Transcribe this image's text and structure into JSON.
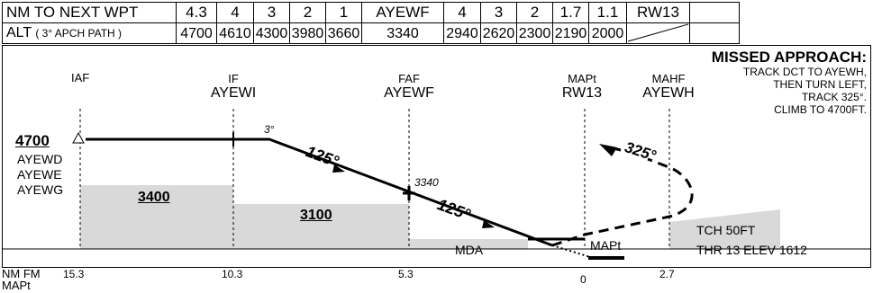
{
  "table": {
    "nm_label": "NM TO NEXT WPT",
    "nm_values": [
      "4.3",
      "4",
      "3",
      "2",
      "1",
      "AYEWF",
      "4",
      "3",
      "2",
      "1.7",
      "1.1",
      "RW13"
    ],
    "alt_label_main": "ALT",
    "alt_label_sub": "( 3° APCH PATH )",
    "alt_values": [
      "4700",
      "4610",
      "4300",
      "3980",
      "3660",
      "3340",
      "2940",
      "2620",
      "2300",
      "2190",
      "2000"
    ]
  },
  "missed": {
    "title": "MISSED APPROACH:",
    "lines": [
      "TRACK DCT TO AYEWH,",
      "THEN TURN LEFT,",
      "TRACK 325°.",
      "CLIMB TO 4700FT."
    ]
  },
  "fixes": {
    "iaf": "IAF",
    "if_role": "IF",
    "if_name": "AYEWI",
    "faf_role": "FAF",
    "faf_name": "AYEWF",
    "mapt_role": "MAPt",
    "mapt_name": "RW13",
    "mahf_role": "MAHF",
    "mahf_name": "AYEWH"
  },
  "profile": {
    "iaf_alt": "4700",
    "holds": [
      "AYEWD",
      "AYEWE",
      "AYEWG"
    ],
    "glide_angle": "3°",
    "track_1": "125°",
    "track_2": "125°",
    "faf_alt": "3340",
    "track_missed": "325°",
    "msa_1": "3400",
    "msa_2": "3100",
    "mda": "MDA",
    "mapt_tag": "MAPt",
    "tch": "TCH 50FT",
    "thr": "THR 13 ELEV 1612"
  },
  "distances": {
    "label_line1": "NM FM",
    "label_line2": "MAPt",
    "ticks": [
      "15.3",
      "10.3",
      "5.3",
      "0",
      "2.7"
    ]
  }
}
